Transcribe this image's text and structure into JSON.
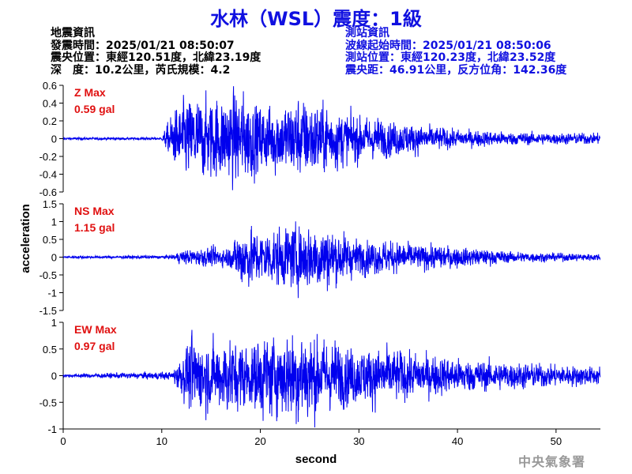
{
  "header": {
    "title": "水林（WSL）震度：1級",
    "left_lines": [
      "地震資訊",
      "發震時間：2025/01/21 08:50:07",
      "震央位置：東經120.51度，北緯23.19度",
      "深　度：10.2公里，芮氏規模：4.2"
    ],
    "right_lines": [
      "測站資訊",
      "波線起始時間：2025/01/21 08:50:06",
      "測站位置：東經120.23度，北緯23.52度",
      "震央距：46.91公里，反方位角：142.36度"
    ],
    "agency": "中央氣象署"
  },
  "colors": {
    "title": "#1010e0",
    "station_info": "#1010e0",
    "trace": "#0000ee",
    "max_label": "#e01010",
    "agency": "#999999"
  },
  "chart_data": {
    "type": "line",
    "xlabel": "second",
    "ylabel": "acceleration",
    "xlim": [
      0,
      54.5
    ],
    "xticks": [
      0,
      10,
      20,
      30,
      40,
      50
    ],
    "panels": [
      {
        "component": "Z",
        "max_label": "Z Max",
        "max_value_label": "0.59 gal",
        "peak": 0.59,
        "ylim": [
          -0.6,
          0.6
        ],
        "yticks": [
          -0.6,
          -0.4,
          -0.2,
          0,
          0.2,
          0.4,
          0.6
        ],
        "ytick_labels": [
          "-0.6",
          "-0.4",
          "-0.2",
          "0",
          "0.2",
          "0.4",
          "0.6"
        ],
        "envelope": {
          "t": [
            0,
            10,
            11,
            12,
            13,
            14,
            16,
            18,
            20,
            22,
            24,
            26,
            28,
            30,
            35,
            40,
            45,
            50,
            54.5
          ],
          "amp": [
            0.01,
            0.012,
            0.22,
            0.32,
            0.38,
            0.35,
            0.38,
            0.42,
            0.3,
            0.32,
            0.36,
            0.32,
            0.26,
            0.2,
            0.14,
            0.08,
            0.06,
            0.05,
            0.05
          ]
        }
      },
      {
        "component": "NS",
        "max_label": "NS Max",
        "max_value_label": "1.15 gal",
        "peak": 1.15,
        "ylim": [
          -1.5,
          1.5
        ],
        "yticks": [
          -1.5,
          -1,
          -0.5,
          0,
          0.5,
          1,
          1.5
        ],
        "ytick_labels": [
          "-1.5",
          "-1",
          "-0.5",
          "0",
          "0.5",
          "1",
          "1.5"
        ],
        "envelope": {
          "t": [
            0,
            11,
            12,
            14,
            17,
            18,
            20,
            22,
            24,
            26,
            28,
            30,
            33,
            36,
            40,
            45,
            50,
            54.5
          ],
          "amp": [
            0.02,
            0.03,
            0.12,
            0.15,
            0.18,
            0.55,
            0.45,
            0.5,
            0.55,
            0.6,
            0.45,
            0.3,
            0.28,
            0.22,
            0.18,
            0.1,
            0.07,
            0.06
          ]
        }
      },
      {
        "component": "EW",
        "max_label": "EW Max",
        "max_value_label": "0.97 gal",
        "peak": 0.97,
        "ylim": [
          -1,
          1
        ],
        "yticks": [
          -1,
          -0.5,
          0,
          0.5,
          1
        ],
        "ytick_labels": [
          "-1",
          "-0.5",
          "0",
          "0.5",
          "1"
        ],
        "envelope": {
          "t": [
            0,
            11,
            12,
            13,
            15,
            17,
            19,
            20,
            22,
            24,
            26,
            28,
            30,
            32,
            35,
            40,
            45,
            50,
            54.5
          ],
          "amp": [
            0.02,
            0.05,
            0.25,
            0.5,
            0.42,
            0.5,
            0.38,
            0.55,
            0.5,
            0.65,
            0.48,
            0.42,
            0.35,
            0.38,
            0.3,
            0.22,
            0.18,
            0.14,
            0.12
          ]
        }
      }
    ]
  }
}
